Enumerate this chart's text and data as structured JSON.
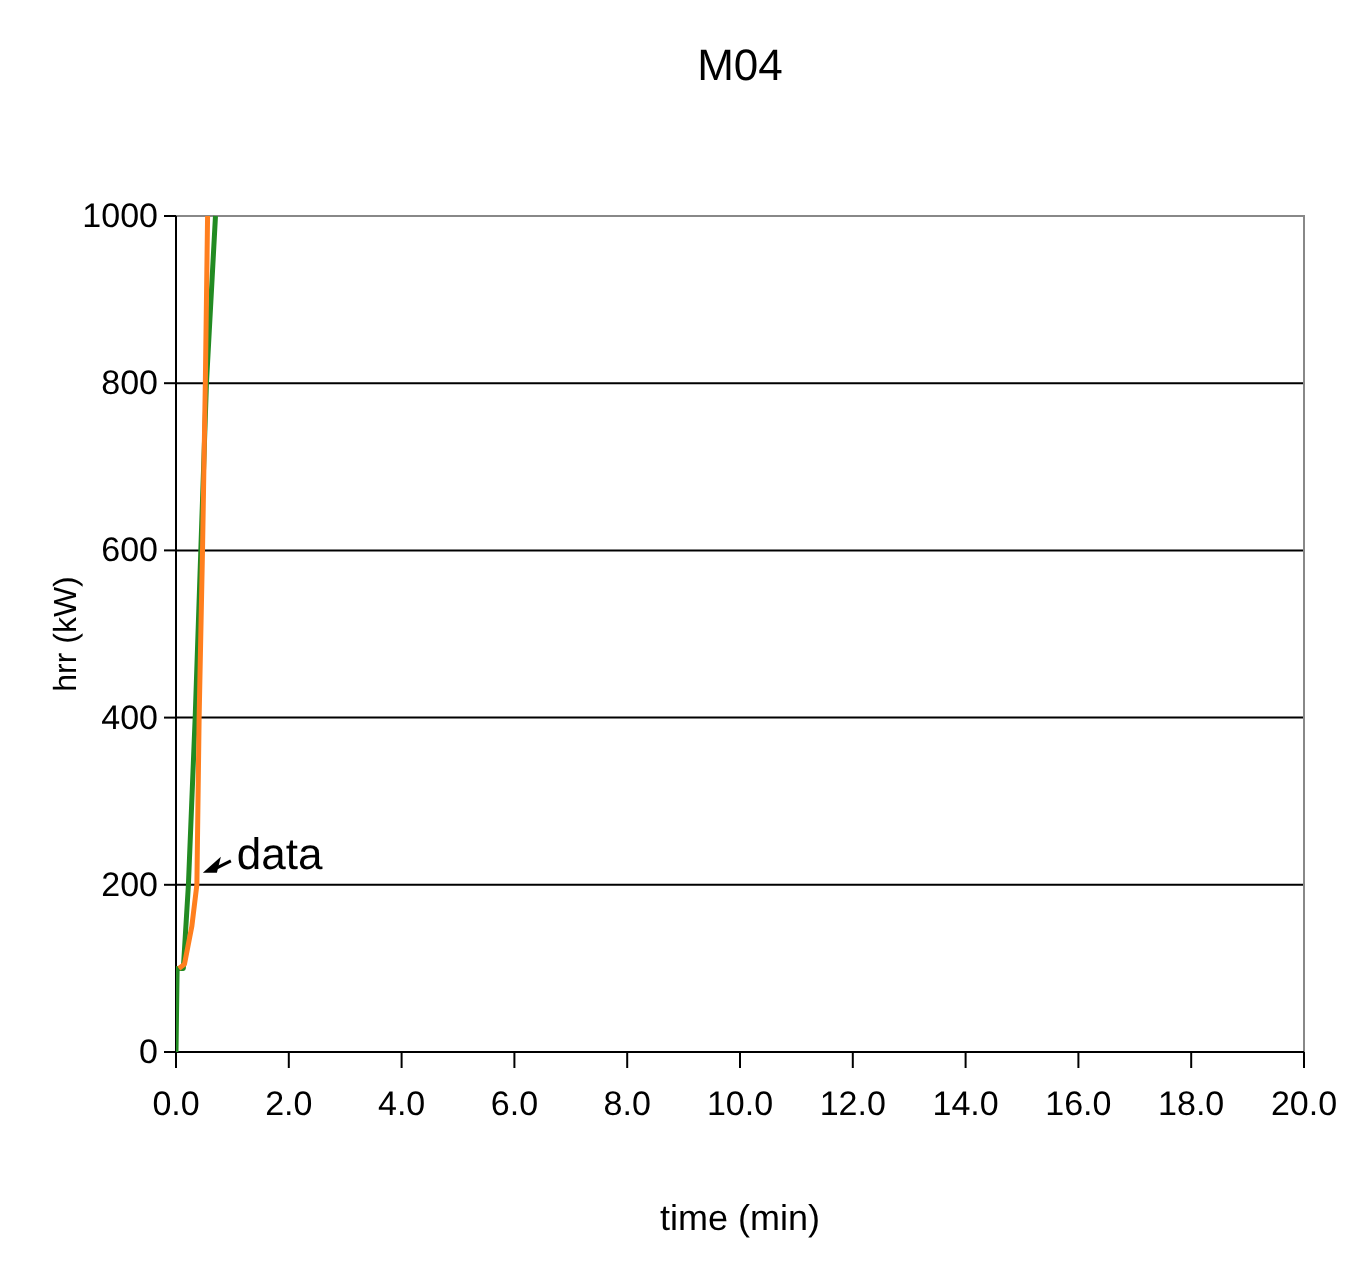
{
  "chart_data": {
    "type": "line",
    "title": "M04",
    "xlabel": "time (min)",
    "ylabel": "hrr (kW)",
    "xlim": [
      0,
      20
    ],
    "xticks": [
      {
        "value": 0,
        "label": "0.0"
      },
      {
        "value": 2,
        "label": "2.0"
      },
      {
        "value": 4,
        "label": "4.0"
      },
      {
        "value": 6,
        "label": "6.0"
      },
      {
        "value": 8,
        "label": "8.0"
      },
      {
        "value": 10,
        "label": "10.0"
      },
      {
        "value": 12,
        "label": "12.0"
      },
      {
        "value": 14,
        "label": "14.0"
      },
      {
        "value": 16,
        "label": "16.0"
      },
      {
        "value": 18,
        "label": "18.0"
      },
      {
        "value": 20,
        "label": "20.0"
      }
    ],
    "ylim": [
      0,
      1000
    ],
    "yticks": [
      0,
      200,
      400,
      600,
      800,
      1000
    ],
    "grid": "y",
    "legend": false,
    "marker": "none",
    "line_style": "solid",
    "series": [
      {
        "color": "#228b22",
        "x": [
          0,
          0.02,
          0.13,
          0.22,
          0.34,
          0.44,
          0.54,
          0.7
        ],
        "values": [
          0,
          100,
          100,
          200,
          400,
          600,
          800,
          1000
        ]
      },
      {
        "name": "data",
        "color": "#ff7f1e",
        "x": [
          0.05,
          0.15,
          0.28,
          0.37,
          0.41,
          0.47,
          0.52,
          0.56
        ],
        "values": [
          100,
          105,
          150,
          200,
          400,
          600,
          800,
          1000
        ]
      }
    ]
  }
}
